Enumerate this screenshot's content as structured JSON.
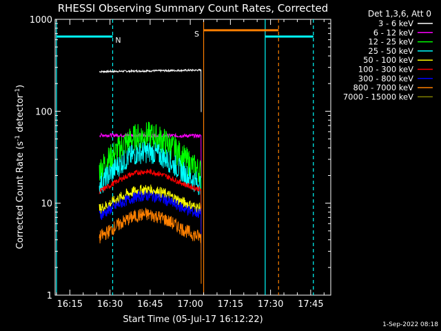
{
  "chart_data": {
    "type": "line",
    "title": "RHESSI Observing Summary Count Rates, Corrected",
    "xlabel": "Start Time (05-Jul-17 16:12:22)",
    "ylabel_main": "Corrected Count Rate (s",
    "ylabel_sup1": "-1",
    "ylabel_mid": " detector",
    "ylabel_sup2": "-1",
    "ylabel_end": ")",
    "footer": "1-Sep-2022 08:18",
    "y_scale": "log",
    "ylim": [
      1,
      1000
    ],
    "xlim": [
      "16:09:30",
      "17:52:30"
    ],
    "x_tick_labels": [
      "16:15",
      "16:30",
      "16:45",
      "17:00",
      "17:15",
      "17:30",
      "17:45"
    ],
    "x_tick_minutes": [
      15,
      30,
      45,
      60,
      75,
      90,
      105
    ],
    "y_tick_labels": [
      "1",
      "10",
      "100",
      "1000"
    ],
    "y_tick_values": [
      1,
      10,
      100,
      1000
    ],
    "legend_title": "Det 1,3,6, Att 0",
    "legend_position": "right",
    "data_window": [
      "16:26",
      "17:04"
    ],
    "series": [
      {
        "name": "3 - 6 keV",
        "color": "#ffffff",
        "shape": "flat",
        "base": [
          270,
          280
        ],
        "peak": 280,
        "noise": 0.02
      },
      {
        "name": "6 - 12 keV",
        "color": "#ff00ff",
        "shape": "flat",
        "base": [
          55,
          54
        ],
        "peak": 55,
        "noise": 0.04
      },
      {
        "name": "12 - 25 keV",
        "color": "#00ff00",
        "shape": "hump",
        "base": [
          14,
          17
        ],
        "peak": 55,
        "noise": 0.3
      },
      {
        "name": "25 - 50 keV",
        "color": "#00ffff",
        "shape": "hump",
        "base": [
          10,
          13
        ],
        "peak": 36,
        "noise": 0.25
      },
      {
        "name": "50 - 100 keV",
        "color": "#ffff00",
        "shape": "hump",
        "base": [
          7,
          8
        ],
        "peak": 14,
        "noise": 0.12
      },
      {
        "name": "100 - 300 keV",
        "color": "#ff0000",
        "shape": "hump",
        "base": [
          11,
          13
        ],
        "peak": 22,
        "noise": 0.06
      },
      {
        "name": "300 - 800 keV",
        "color": "#0000ff",
        "shape": "hump",
        "base": [
          6,
          7
        ],
        "peak": 12,
        "noise": 0.12
      },
      {
        "name": "800 - 7000 keV",
        "color": "#ff8000",
        "shape": "hump",
        "base": [
          3.3,
          3.8
        ],
        "peak": 7.5,
        "noise": 0.15
      },
      {
        "name": "7000 - 15000 keV",
        "color": "#808000",
        "shape": "none",
        "base": [
          0,
          0
        ],
        "peak": 0,
        "noise": 0
      }
    ],
    "annotations": [
      {
        "label": "N",
        "kind": "night",
        "color": "#00ffff",
        "start": "16:10",
        "end": "16:31",
        "y_level": 650
      },
      {
        "label": "",
        "kind": "night",
        "color": "#00ffff",
        "start": "17:28",
        "end": "17:46",
        "y_level": 650
      },
      {
        "label": "S",
        "kind": "saa",
        "color": "#ff8000",
        "start": "17:05",
        "end": "17:33",
        "y_level": 760
      }
    ]
  }
}
